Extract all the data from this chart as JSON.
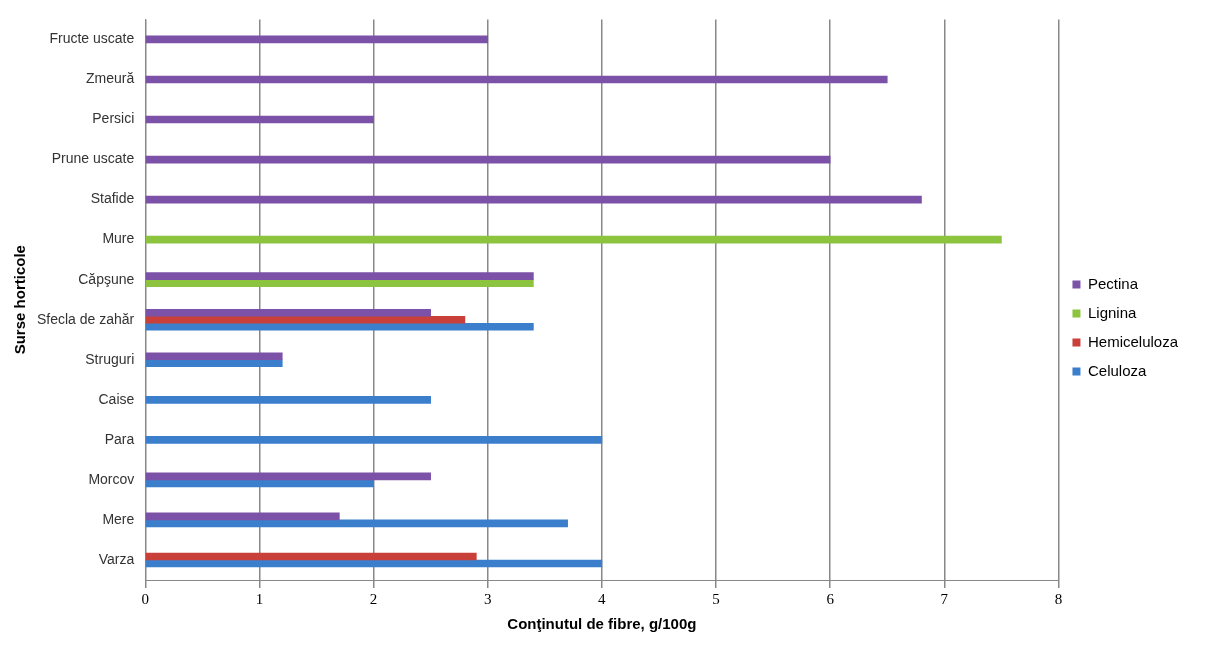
{
  "chart_data": {
    "type": "bar",
    "orientation": "horizontal",
    "xlabel": "Conţinutul de fibre, g/100g",
    "ylabel": "Surse horticole",
    "categories": [
      "Fructe uscate",
      "Zmeură",
      "Persici",
      "Prune uscate",
      "Stafide",
      "Mure",
      "Căpşune",
      "Sfecla de zahăr",
      "Struguri",
      "Caise",
      "Para",
      "Morcov",
      "Mere",
      "Varza"
    ],
    "series": [
      {
        "name": "Pectina",
        "color": "#7b52a8",
        "values": [
          3,
          6.5,
          2,
          6,
          6.8,
          null,
          3.4,
          2.5,
          1.2,
          null,
          null,
          2.5,
          1.7,
          null
        ]
      },
      {
        "name": "Lignina",
        "color": "#8cc43f",
        "values": [
          null,
          null,
          null,
          null,
          null,
          7.5,
          3.4,
          null,
          null,
          null,
          null,
          null,
          null,
          null
        ]
      },
      {
        "name": "Hemiceluloza",
        "color": "#c9403a",
        "values": [
          null,
          null,
          null,
          null,
          null,
          null,
          null,
          2.8,
          null,
          null,
          null,
          null,
          null,
          2.9
        ]
      },
      {
        "name": "Celuloza",
        "color": "#3b7fcc",
        "values": [
          null,
          null,
          null,
          null,
          null,
          null,
          null,
          3.4,
          1.2,
          2.5,
          4,
          2,
          3.7,
          4
        ]
      }
    ],
    "xlim": [
      0,
      8
    ],
    "xticks": [
      0,
      1,
      2,
      3,
      4,
      5,
      6,
      7,
      8
    ],
    "grid": "x",
    "legend": "right"
  }
}
